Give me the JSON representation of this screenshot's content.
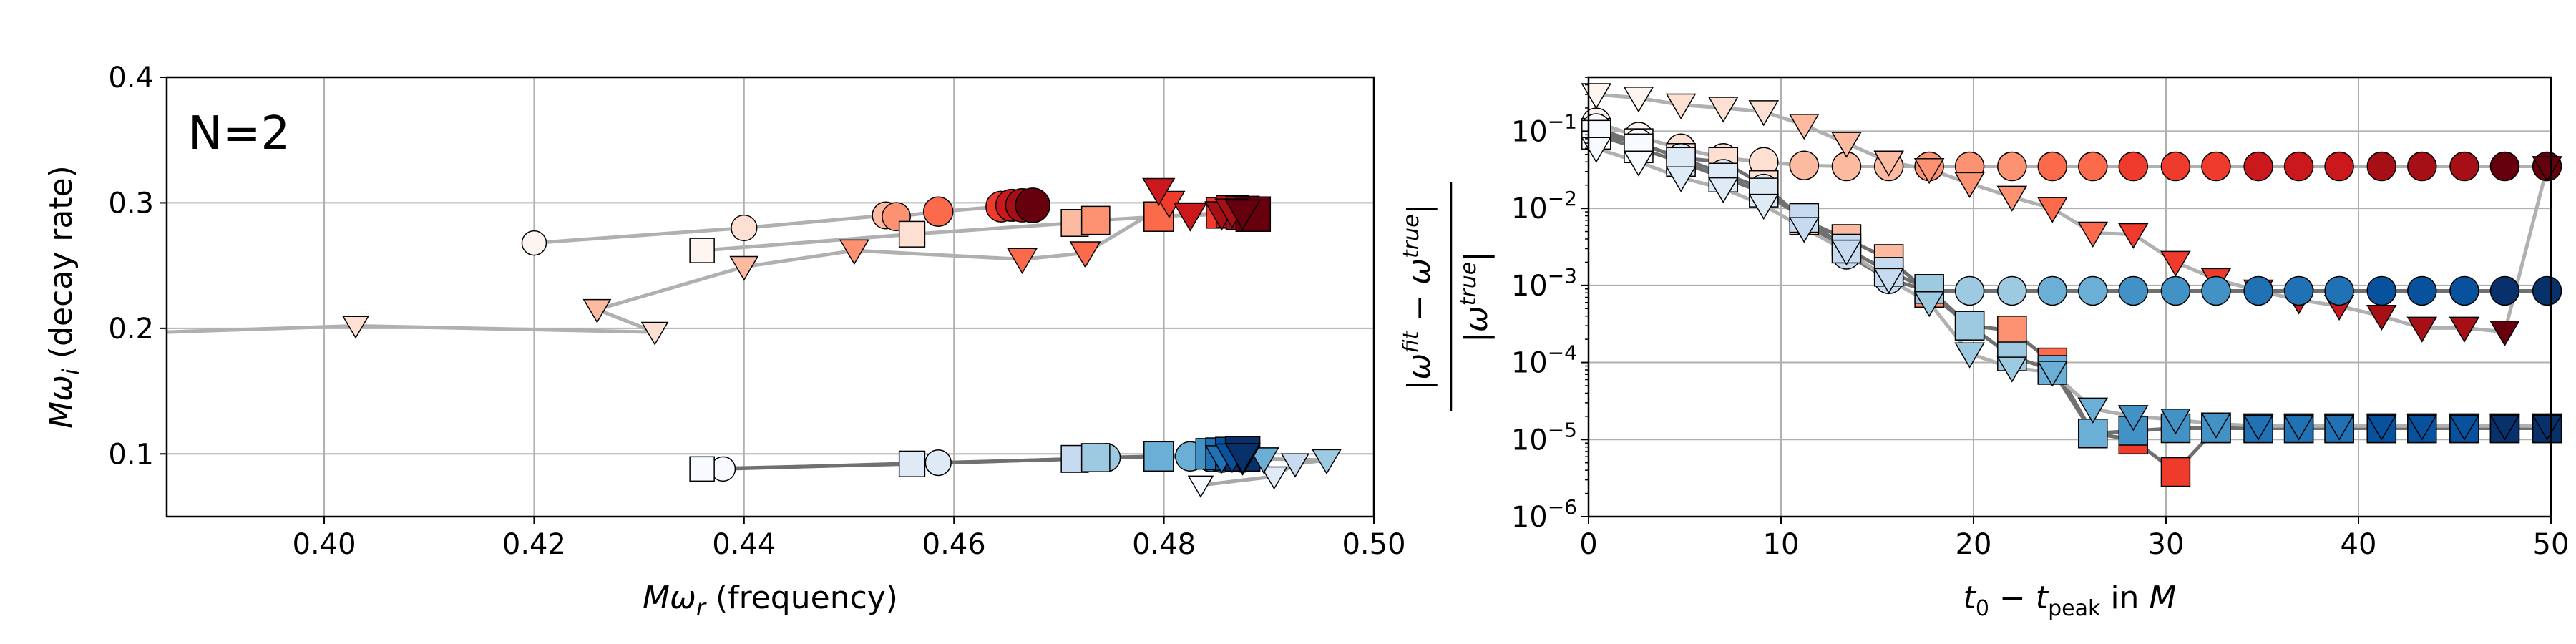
{
  "chart_data": [
    {
      "type": "scatter",
      "xlabel": "Mω_r (frequency)",
      "ylabel": "Mω_i (decay rate)",
      "xlim": [
        0.385,
        0.5
      ],
      "ylim": [
        0.05,
        0.4
      ],
      "xticks": [
        "0.40",
        "0.42",
        "0.44",
        "0.46",
        "0.48",
        "0.50"
      ],
      "yticks": [
        "0.1",
        "0.2",
        "0.3",
        "0.4"
      ],
      "grid": true,
      "annotation": "N=2",
      "series": [
        {
          "marker": "circle",
          "family": "red",
          "line_color": "#b0b0b0",
          "points": [
            [
              0.42,
              0.268
            ],
            [
              0.44,
              0.28
            ],
            [
              0.4535,
              0.29
            ],
            [
              0.4545,
              0.289
            ],
            [
              0.4585,
              0.293
            ],
            [
              0.4645,
              0.297
            ],
            [
              0.4655,
              0.298
            ],
            [
              0.4665,
              0.298
            ],
            [
              0.4675,
              0.298
            ]
          ]
        },
        {
          "marker": "square",
          "family": "red",
          "line_color": "#b0b0b0",
          "points": [
            [
              0.436,
              0.262
            ],
            [
              0.456,
              0.275
            ],
            [
              0.4715,
              0.284
            ],
            [
              0.4735,
              0.286
            ],
            [
              0.4795,
              0.289
            ],
            [
              0.4855,
              0.292
            ],
            [
              0.4865,
              0.293
            ],
            [
              0.4875,
              0.292
            ],
            [
              0.4885,
              0.291
            ]
          ]
        },
        {
          "marker": "triangle",
          "family": "red",
          "line_color": "#b0b0b0",
          "points": [
            [
              0.385,
              0.197
            ],
            [
              0.403,
              0.202
            ],
            [
              0.4315,
              0.197
            ],
            [
              0.426,
              0.215
            ],
            [
              0.44,
              0.249
            ],
            [
              0.4505,
              0.262
            ],
            [
              0.4665,
              0.255
            ],
            [
              0.4725,
              0.26
            ],
            [
              0.4805,
              0.3
            ],
            [
              0.4795,
              0.31
            ],
            [
              0.4825,
              0.29
            ],
            [
              0.4855,
              0.291
            ],
            [
              0.4865,
              0.293
            ],
            [
              0.4875,
              0.292
            ]
          ]
        },
        {
          "marker": "circle",
          "family": "blue",
          "line_color": "#707070",
          "points": [
            [
              0.438,
              0.088
            ],
            [
              0.4585,
              0.093
            ],
            [
              0.4725,
              0.096
            ],
            [
              0.4745,
              0.097
            ],
            [
              0.4825,
              0.098
            ],
            [
              0.4845,
              0.098
            ],
            [
              0.4855,
              0.098
            ],
            [
              0.4865,
              0.099
            ],
            [
              0.4875,
              0.099
            ]
          ]
        },
        {
          "marker": "square",
          "family": "blue",
          "line_color": "#707070",
          "points": [
            [
              0.436,
              0.088
            ],
            [
              0.456,
              0.092
            ],
            [
              0.4715,
              0.096
            ],
            [
              0.4735,
              0.097
            ],
            [
              0.4795,
              0.098
            ],
            [
              0.4845,
              0.1
            ],
            [
              0.4855,
              0.1
            ],
            [
              0.4865,
              0.1
            ],
            [
              0.4875,
              0.1
            ]
          ]
        },
        {
          "marker": "triangle",
          "family": "blue",
          "line_color": "#a8a8a8",
          "points": [
            [
              0.4835,
              0.075
            ],
            [
              0.4905,
              0.082
            ],
            [
              0.4925,
              0.092
            ],
            [
              0.4955,
              0.095
            ],
            [
              0.4895,
              0.096
            ],
            [
              0.4875,
              0.095
            ],
            [
              0.4855,
              0.097
            ],
            [
              0.4865,
              0.098
            ],
            [
              0.4875,
              0.098
            ]
          ]
        }
      ]
    },
    {
      "type": "scatter",
      "scale_y": "log",
      "xlabel": "t_0 − t_peak in M",
      "ylabel": "|ω^fit − ω^true| / |ω^true|",
      "xlim": [
        0,
        50
      ],
      "ylim_exp": [
        -6,
        -0.3
      ],
      "xticks": [
        "0",
        "10",
        "20",
        "30",
        "40",
        "50"
      ],
      "yticks": [
        "10",
        "10",
        "10",
        "10",
        "10",
        "10"
      ],
      "ytick_exps": [
        "−6",
        "−5",
        "−4",
        "−3",
        "−2",
        "−1"
      ],
      "grid": true,
      "x": [
        0.4,
        2.6,
        4.8,
        7,
        9.1,
        11.2,
        13.4,
        15.6,
        17.7,
        19.8,
        22,
        24.1,
        26.2,
        28.3,
        30.5,
        32.6,
        34.8,
        36.9,
        39,
        41.2,
        43.3,
        45.5,
        47.6,
        49.8
      ],
      "series": [
        {
          "marker": "circle",
          "family": "red",
          "line_color": "#b0b0b0",
          "values": [
            0.13,
            0.085,
            0.06,
            0.045,
            0.04,
            0.036,
            0.035,
            0.035,
            0.035,
            0.035,
            0.035,
            0.035,
            0.035,
            0.035,
            0.035,
            0.035,
            0.035,
            0.035,
            0.035,
            0.035,
            0.035,
            0.035,
            0.035,
            0.035
          ]
        },
        {
          "marker": "square",
          "family": "red",
          "line_color": "#707070",
          "values": [
            0.095,
            0.07,
            0.045,
            0.04,
            0.02,
            0.007,
            0.004,
            0.0022,
            0.0008,
            0.0003,
            0.00026,
            0.0001,
            1.2e-05,
            1e-05,
            3.8e-06,
            1.4e-05,
            1.4e-05,
            1.4e-05,
            1.4e-05,
            1.4e-05,
            1.4e-05,
            1.4e-05,
            1.4e-05,
            1.4e-05
          ]
        },
        {
          "marker": "triangle",
          "family": "red",
          "line_color": "#b0b0b0",
          "values": [
            0.3,
            0.27,
            0.22,
            0.2,
            0.18,
            0.12,
            0.07,
            0.04,
            0.032,
            0.021,
            0.014,
            0.01,
            0.0048,
            0.0046,
            0.002,
            0.0012,
            0.00085,
            0.00065,
            0.00054,
            0.0004,
            0.00028,
            0.00028,
            0.00025,
            0.034
          ]
        },
        {
          "marker": "circle",
          "family": "blue",
          "line_color": "#707070",
          "values": [
            0.11,
            0.07,
            0.045,
            0.028,
            0.018,
            0.007,
            0.0025,
            0.0012,
            0.00085,
            0.00085,
            0.00085,
            0.00085,
            0.00085,
            0.00085,
            0.00085,
            0.00085,
            0.00085,
            0.00085,
            0.00085,
            0.00085,
            0.00085,
            0.00085,
            0.00085,
            0.00085
          ]
        },
        {
          "marker": "square",
          "family": "blue",
          "line_color": "#707070",
          "values": [
            0.09,
            0.06,
            0.04,
            0.025,
            0.016,
            0.0075,
            0.003,
            0.0015,
            0.0009,
            0.0003,
            0.00012,
            8e-05,
            1.2e-05,
            1.3e-05,
            1.4e-05,
            1.4e-05,
            1.4e-05,
            1.4e-05,
            1.4e-05,
            1.4e-05,
            1.4e-05,
            1.4e-05,
            1.4e-05,
            1.4e-05
          ]
        },
        {
          "marker": "triangle",
          "family": "blue",
          "line_color": "#b0b0b0",
          "values": [
            0.06,
            0.04,
            0.025,
            0.018,
            0.011,
            0.0055,
            0.0028,
            0.0012,
            0.0006,
            0.00013,
            8.5e-05,
            7.5e-05,
            2.5e-05,
            2e-05,
            1.8e-05,
            1.6e-05,
            1.5e-05,
            1.5e-05,
            1.5e-05,
            1.5e-05,
            1.5e-05,
            1.5e-05,
            1.5e-05,
            1.5e-05
          ]
        }
      ]
    }
  ],
  "colors": {
    "red": [
      "#fff5f0",
      "#fee0d2",
      "#fcbba1",
      "#fc9272",
      "#fb6a4a",
      "#ef3b2c",
      "#cb181d",
      "#a50f15",
      "#67000d"
    ],
    "blue": [
      "#f7fbff",
      "#deebf7",
      "#c6dbef",
      "#9ecae1",
      "#6baed6",
      "#4292c6",
      "#2171b5",
      "#08519c",
      "#08306b"
    ]
  }
}
